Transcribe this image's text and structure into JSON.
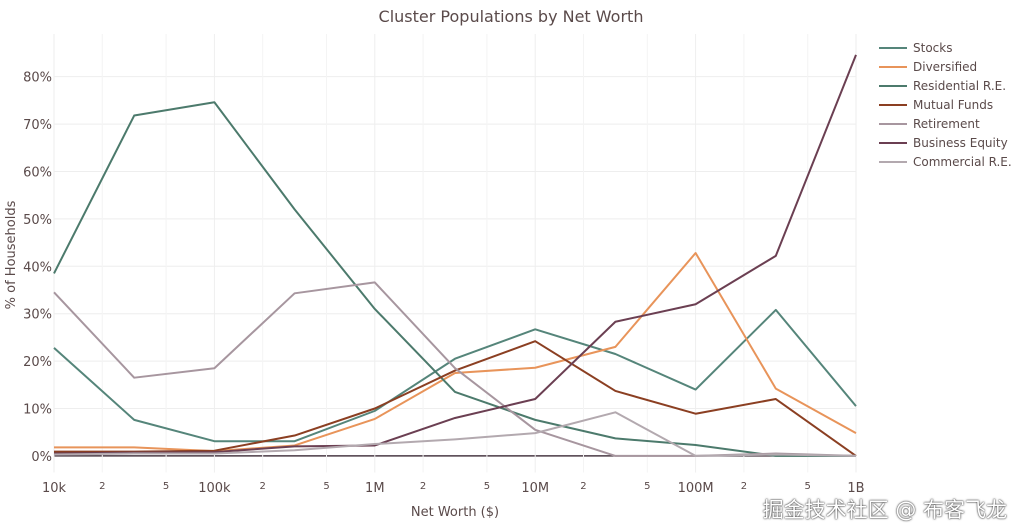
{
  "chart_data": {
    "type": "line",
    "title": "Cluster Populations by Net Worth",
    "xlabel": "Net Worth ($)",
    "ylabel": "% of Households",
    "xscale": "log",
    "xlim": [
      10000,
      1000000000
    ],
    "ylim": [
      -3.5,
      89
    ],
    "x": [
      10000,
      31623,
      100000,
      316228,
      1000000,
      3162278,
      10000000,
      31622777,
      100000000,
      316227766,
      1000000000
    ],
    "x_major_ticks": [
      {
        "v": 10000,
        "label": "10k"
      },
      {
        "v": 100000,
        "label": "100k"
      },
      {
        "v": 1000000,
        "label": "1M"
      },
      {
        "v": 10000000,
        "label": "10M"
      },
      {
        "v": 100000000,
        "label": "100M"
      },
      {
        "v": 1000000000,
        "label": "1B"
      }
    ],
    "x_minor_labels": [
      "2",
      "5"
    ],
    "y_ticks": [
      {
        "v": 0,
        "label": "0%"
      },
      {
        "v": 10,
        "label": "10%"
      },
      {
        "v": 20,
        "label": "20%"
      },
      {
        "v": 30,
        "label": "30%"
      },
      {
        "v": 40,
        "label": "40%"
      },
      {
        "v": 50,
        "label": "50%"
      },
      {
        "v": 60,
        "label": "60%"
      },
      {
        "v": 70,
        "label": "70%"
      },
      {
        "v": 80,
        "label": "80%"
      }
    ],
    "legend_position": "top-right",
    "series": [
      {
        "name": "Stocks",
        "color": "#55857a",
        "values": [
          22.8,
          7.6,
          3.1,
          3.1,
          9.5,
          20.5,
          26.7,
          21.5,
          14,
          30.8,
          10.5
        ]
      },
      {
        "name": "Diversified",
        "color": "#e8945a",
        "values": [
          1.8,
          1.8,
          1.0,
          2.2,
          7.8,
          17.5,
          18.6,
          23,
          42.8,
          14.2,
          4.8
        ]
      },
      {
        "name": "Residential R.E.",
        "color": "#4c7a6c",
        "values": [
          38.5,
          71.8,
          74.6,
          52,
          31,
          13.5,
          7.6,
          3.7,
          2.3,
          0,
          0
        ]
      },
      {
        "name": "Mutual Funds",
        "color": "#8b3f22",
        "values": [
          0.9,
          0.9,
          1.1,
          4.3,
          10,
          18,
          24.2,
          13.7,
          8.9,
          12,
          0
        ]
      },
      {
        "name": "Retirement",
        "color": "#a7969f",
        "values": [
          34.5,
          16.5,
          18.5,
          34.3,
          36.6,
          18.5,
          5.5,
          0,
          0,
          0.5,
          0
        ]
      },
      {
        "name": "Business Equity",
        "color": "#6b3f52",
        "values": [
          0.5,
          0.7,
          0.8,
          2,
          2.2,
          8,
          12,
          28.3,
          32,
          42.2,
          84.6
        ]
      },
      {
        "name": "Commercial R.E.",
        "color": "#b3a9af",
        "values": [
          0.3,
          0.5,
          0.5,
          1.2,
          2.5,
          3.5,
          4.8,
          9.2,
          0,
          0.3,
          0
        ]
      }
    ]
  },
  "watermark": "掘金技术社区 @ 布客飞龙"
}
